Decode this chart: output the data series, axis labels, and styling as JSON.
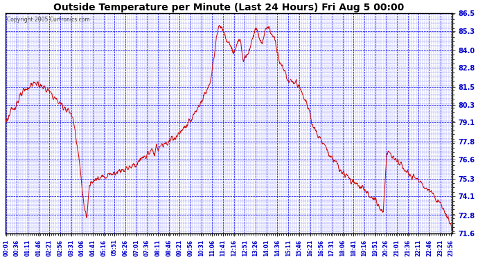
{
  "title": "Outside Temperature per Minute (Last 24 Hours) Fri Aug 5 00:00",
  "copyright": "Copyright 2005 Curtronics.com",
  "bg_color": "#ffffff",
  "plot_bg_color": "#ffffff",
  "grid_color": "#0000ff",
  "line_color": "#cc0000",
  "border_color": "#000000",
  "title_color": "#000000",
  "ylabel_color": "#0000cc",
  "xlabel_color": "#0000cc",
  "yticks": [
    86.5,
    85.3,
    84.0,
    82.8,
    81.5,
    80.3,
    79.1,
    77.8,
    76.6,
    75.3,
    74.1,
    72.8,
    71.6
  ],
  "ymin": 71.6,
  "ymax": 86.5,
  "xtick_labels": [
    "00:01",
    "00:36",
    "01:11",
    "01:46",
    "02:21",
    "02:56",
    "03:31",
    "04:06",
    "04:41",
    "05:16",
    "05:51",
    "06:26",
    "07:01",
    "07:36",
    "08:11",
    "08:46",
    "09:21",
    "09:56",
    "10:31",
    "11:06",
    "11:41",
    "12:16",
    "12:51",
    "13:26",
    "14:01",
    "14:36",
    "15:11",
    "15:46",
    "16:21",
    "16:56",
    "17:31",
    "18:06",
    "18:41",
    "19:16",
    "19:51",
    "20:26",
    "21:01",
    "21:36",
    "22:11",
    "22:46",
    "23:21",
    "23:56"
  ],
  "control_hours": [
    0,
    0.3,
    0.6,
    1.0,
    1.3,
    1.6,
    2.0,
    2.3,
    2.6,
    3.0,
    3.3,
    3.5,
    3.65,
    3.75,
    3.85,
    4.0,
    4.1,
    4.2,
    4.35,
    4.5,
    4.6,
    4.7,
    4.85,
    5.0,
    5.1,
    5.2,
    5.4,
    5.6,
    6.0,
    6.5,
    7.0,
    7.5,
    8.0,
    8.5,
    9.0,
    9.5,
    10.0,
    10.3,
    10.6,
    10.9,
    11.1,
    11.2,
    11.3,
    11.4,
    11.5,
    11.6,
    11.7,
    11.8,
    12.0,
    12.2,
    12.4,
    12.6,
    12.8,
    13.0,
    13.2,
    13.4,
    13.5,
    13.6,
    13.8,
    14.0,
    14.1,
    14.2,
    14.3,
    14.4,
    14.5,
    14.6,
    14.7,
    14.8,
    15.0,
    15.2,
    15.4,
    15.5,
    15.6,
    15.8,
    16.0,
    16.2,
    16.4,
    16.5,
    16.8,
    17.0,
    17.3,
    17.5,
    17.8,
    18.0,
    18.3,
    18.5,
    18.8,
    19.0,
    19.3,
    19.5,
    19.8,
    20.0,
    20.3,
    20.5,
    20.8,
    21.0,
    21.3,
    21.5,
    21.8,
    22.0,
    22.3,
    22.5,
    22.8,
    23.0,
    23.2,
    23.4,
    23.6,
    23.8,
    24.0
  ],
  "control_temps": [
    79.2,
    79.8,
    80.5,
    81.2,
    81.6,
    81.8,
    81.5,
    81.2,
    80.8,
    80.3,
    80.0,
    79.7,
    79.2,
    78.5,
    77.5,
    76.0,
    74.8,
    73.5,
    72.5,
    74.8,
    75.2,
    75.3,
    75.3,
    75.2,
    75.3,
    75.4,
    75.5,
    75.6,
    75.8,
    76.0,
    76.3,
    76.8,
    77.2,
    77.6,
    78.0,
    78.5,
    79.3,
    80.0,
    80.8,
    81.5,
    82.5,
    83.5,
    84.5,
    85.3,
    85.8,
    85.5,
    85.2,
    84.8,
    84.5,
    83.8,
    84.2,
    84.8,
    83.5,
    83.8,
    84.5,
    85.5,
    85.3,
    85.0,
    84.5,
    85.5,
    85.6,
    85.4,
    85.2,
    85.0,
    84.5,
    83.8,
    83.5,
    83.0,
    82.5,
    82.0,
    81.8,
    81.8,
    82.0,
    81.5,
    81.0,
    80.3,
    79.5,
    79.0,
    78.3,
    77.8,
    77.2,
    76.8,
    76.3,
    75.8,
    75.5,
    75.2,
    75.0,
    74.8,
    74.5,
    74.2,
    74.0,
    73.5,
    73.0,
    77.2,
    76.8,
    76.5,
    76.2,
    75.8,
    75.5,
    75.3,
    75.0,
    74.8,
    74.5,
    74.2,
    73.8,
    73.5,
    73.0,
    72.5,
    71.8
  ]
}
